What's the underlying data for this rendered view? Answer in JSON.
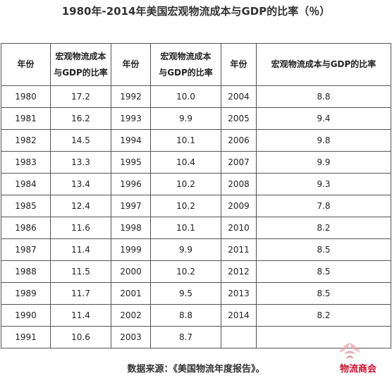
{
  "title": "1980年-2014年美国宏观物流成本与GDP的比率（％）",
  "headers": {
    "year": "年份",
    "ratio_line1": "宏观物流成本",
    "ratio_line2": "与GDP的比率",
    "ratio_full": "宏观物流成本与GDP的比率"
  },
  "rows": [
    {
      "y1": "1980",
      "v1": "17.2",
      "y2": "1992",
      "v2": "10.0",
      "y3": "2004",
      "v3": "8.8"
    },
    {
      "y1": "1981",
      "v1": "16.2",
      "y2": "1993",
      "v2": "9.9",
      "y3": "2005",
      "v3": "9.4"
    },
    {
      "y1": "1982",
      "v1": "14.5",
      "y2": "1994",
      "v2": "10.1",
      "y3": "2006",
      "v3": "9.8"
    },
    {
      "y1": "1983",
      "v1": "13.3",
      "y2": "1995",
      "v2": "10.4",
      "y3": "2007",
      "v3": "9.9"
    },
    {
      "y1": "1984",
      "v1": "13.4",
      "y2": "1996",
      "v2": "10.2",
      "y3": "2008",
      "v3": "9.3"
    },
    {
      "y1": "1985",
      "v1": "12.4",
      "y2": "1997",
      "v2": "10.2",
      "y3": "2009",
      "v3": "7.8"
    },
    {
      "y1": "1986",
      "v1": "11.6",
      "y2": "1998",
      "v2": "10.1",
      "y3": "2010",
      "v3": "8.2"
    },
    {
      "y1": "1987",
      "v1": "11.4",
      "y2": "1999",
      "v2": "9.9",
      "y3": "2011",
      "v3": "8.5"
    },
    {
      "y1": "1988",
      "v1": "11.5",
      "y2": "2000",
      "v2": "10.2",
      "y3": "2012",
      "v3": "8.5"
    },
    {
      "y1": "1989",
      "v1": "11.7",
      "y2": "2001",
      "v2": "9.5",
      "y3": "2013",
      "v3": "8.5"
    },
    {
      "y1": "1990",
      "v1": "11.4",
      "y2": "2002",
      "v2": "8.8",
      "y3": "2014",
      "v3": "8.2"
    },
    {
      "y1": "1991",
      "v1": "10.6",
      "y2": "2003",
      "v2": "8.7",
      "y3": "",
      "v3": ""
    }
  ],
  "source": "数据来源：《美国物流年度报告》。",
  "watermark": {
    "text": "物流商会",
    "color": "#c8102e",
    "icon": "logistics-chamber-logo-icon"
  }
}
